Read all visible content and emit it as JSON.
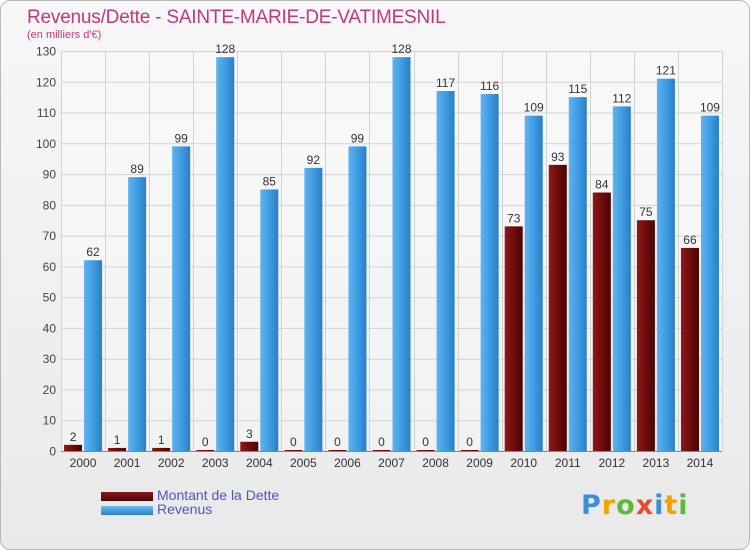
{
  "chart_data": {
    "type": "bar",
    "title": "Revenus/Dette - SAINTE-MARIE-DE-VATIMESNIL",
    "subtitle": "(en milliers d'€)",
    "categories": [
      "2000",
      "2001",
      "2002",
      "2003",
      "2004",
      "2005",
      "2006",
      "2007",
      "2008",
      "2009",
      "2010",
      "2011",
      "2012",
      "2013",
      "2014"
    ],
    "series": [
      {
        "name": "Montant de la Dette",
        "color": "#6b0a0a",
        "values": [
          2,
          1,
          1,
          0,
          3,
          0,
          0,
          0,
          0,
          0,
          73,
          93,
          84,
          75,
          66
        ]
      },
      {
        "name": "Revenus",
        "color": "#3d9ae0",
        "values": [
          62,
          89,
          99,
          128,
          85,
          92,
          99,
          128,
          117,
          116,
          109,
          115,
          112,
          121,
          109
        ]
      }
    ],
    "ylim": [
      0,
      130
    ],
    "yticks": [
      0,
      10,
      20,
      30,
      40,
      50,
      60,
      70,
      80,
      90,
      100,
      110,
      120,
      130
    ],
    "grid": true,
    "legend_position": "bottom-left"
  },
  "branding": {
    "logo_letters": [
      "P",
      "r",
      "o",
      "x",
      "i",
      "t",
      "i"
    ]
  }
}
